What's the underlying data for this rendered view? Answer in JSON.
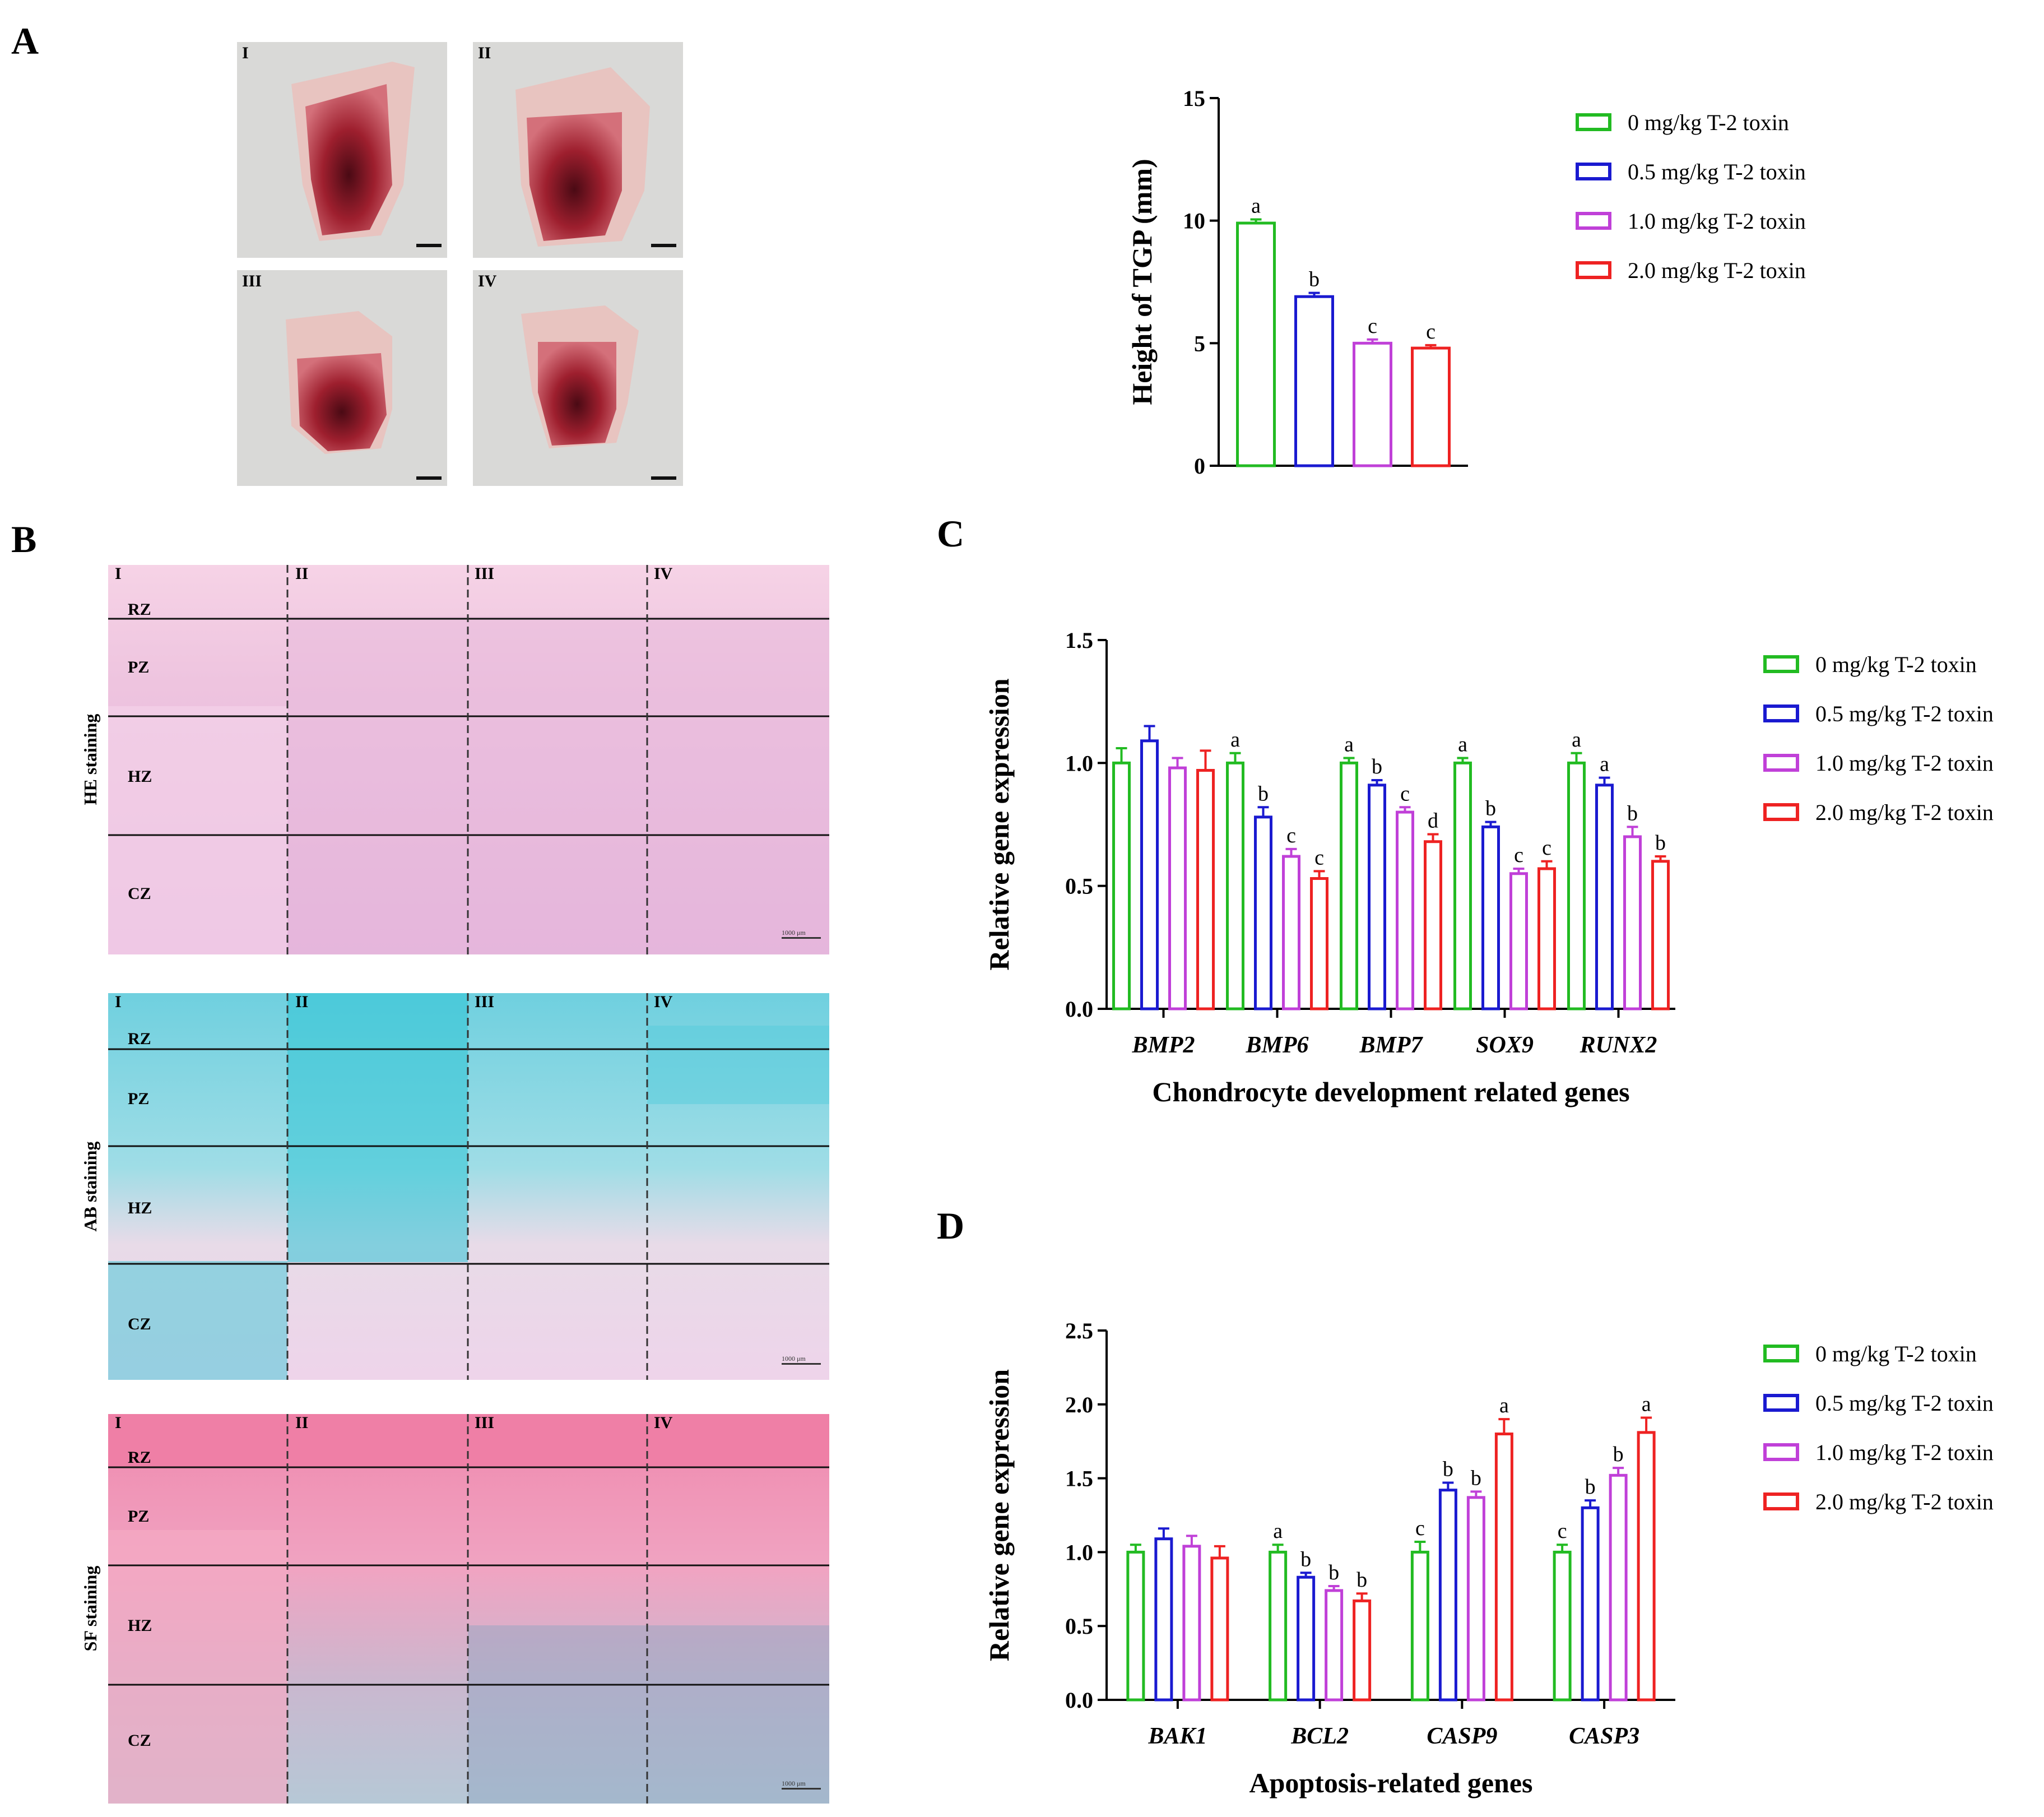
{
  "panels": {
    "A": "A",
    "B": "B",
    "C": "C",
    "D": "D"
  },
  "colors": {
    "g0": "#22bb22",
    "g05": "#1a1ad0",
    "g10": "#c040d8",
    "g20": "#ee2222"
  },
  "legend": [
    "0 mg/kg T-2 toxin",
    "0.5 mg/kg T-2 toxin",
    "1.0 mg/kg T-2 toxin",
    "2.0 mg/kg T-2 toxin"
  ],
  "photos": {
    "labels": [
      "I",
      "II",
      "III",
      "IV"
    ]
  },
  "histology": {
    "columns": [
      "I",
      "II",
      "III",
      "IV"
    ],
    "zones": [
      "RZ",
      "PZ",
      "HZ",
      "CZ"
    ],
    "stains": [
      "HE staining",
      "AB staining",
      "SF staining"
    ],
    "scale_text": "1000 μm"
  },
  "chart_data": [
    {
      "id": "A",
      "type": "bar",
      "title": "",
      "ylabel": "Height of TGP (mm)",
      "xlabel": "",
      "ylim": [
        0,
        15
      ],
      "yticks": [
        0,
        5,
        10,
        15
      ],
      "categories": [
        ""
      ],
      "series": [
        {
          "name": "0 mg/kg T-2 toxin",
          "values": [
            9.9
          ],
          "errors": [
            0.15
          ],
          "sig": [
            "a"
          ]
        },
        {
          "name": "0.5 mg/kg T-2 toxin",
          "values": [
            6.9
          ],
          "errors": [
            0.15
          ],
          "sig": [
            "b"
          ]
        },
        {
          "name": "1.0 mg/kg T-2 toxin",
          "values": [
            5.0
          ],
          "errors": [
            0.15
          ],
          "sig": [
            "c"
          ]
        },
        {
          "name": "2.0 mg/kg T-2 toxin",
          "values": [
            4.8
          ],
          "errors": [
            0.12
          ],
          "sig": [
            "c"
          ]
        }
      ]
    },
    {
      "id": "C",
      "type": "bar",
      "title": "",
      "ylabel": "Relative gene expression",
      "xlabel": "Chondrocyte development related genes",
      "ylim": [
        0,
        1.5
      ],
      "yticks": [
        "0.0",
        "0.5",
        "1.0",
        "1.5"
      ],
      "categories": [
        "BMP2",
        "BMP6",
        "BMP7",
        "SOX9",
        "RUNX2"
      ],
      "series": [
        {
          "name": "0 mg/kg T-2 toxin",
          "values": [
            1.0,
            1.0,
            1.0,
            1.0,
            1.0
          ],
          "errors": [
            0.06,
            0.04,
            0.02,
            0.02,
            0.04
          ],
          "sig": [
            "",
            "a",
            "a",
            "a",
            "a"
          ]
        },
        {
          "name": "0.5 mg/kg T-2 toxin",
          "values": [
            1.09,
            0.78,
            0.91,
            0.74,
            0.91
          ],
          "errors": [
            0.06,
            0.04,
            0.02,
            0.02,
            0.03
          ],
          "sig": [
            "",
            "b",
            "b",
            "b",
            "a"
          ]
        },
        {
          "name": "1.0 mg/kg T-2 toxin",
          "values": [
            0.98,
            0.62,
            0.8,
            0.55,
            0.7
          ],
          "errors": [
            0.04,
            0.03,
            0.02,
            0.02,
            0.04
          ],
          "sig": [
            "",
            "c",
            "c",
            "c",
            "b"
          ]
        },
        {
          "name": "2.0 mg/kg T-2 toxin",
          "values": [
            0.97,
            0.53,
            0.68,
            0.57,
            0.6
          ],
          "errors": [
            0.08,
            0.03,
            0.03,
            0.03,
            0.02
          ],
          "sig": [
            "",
            "c",
            "d",
            "c",
            "b"
          ]
        }
      ]
    },
    {
      "id": "D",
      "type": "bar",
      "title": "",
      "ylabel": "Relative gene expression",
      "xlabel": "Apoptosis-related genes",
      "ylim": [
        0,
        2.5
      ],
      "yticks": [
        "0.0",
        "0.5",
        "1.0",
        "1.5",
        "2.0",
        "2.5"
      ],
      "categories": [
        "BAK1",
        "BCL2",
        "CASP9",
        "CASP3"
      ],
      "series": [
        {
          "name": "0 mg/kg T-2 toxin",
          "values": [
            1.0,
            1.0,
            1.0,
            1.0
          ],
          "errors": [
            0.05,
            0.05,
            0.07,
            0.05
          ],
          "sig": [
            "",
            "a",
            "c",
            "c"
          ]
        },
        {
          "name": "0.5 mg/kg T-2 toxin",
          "values": [
            1.09,
            0.83,
            1.42,
            1.3
          ],
          "errors": [
            0.07,
            0.03,
            0.05,
            0.05
          ],
          "sig": [
            "",
            "b",
            "b",
            "b"
          ]
        },
        {
          "name": "1.0 mg/kg T-2 toxin",
          "values": [
            1.04,
            0.74,
            1.37,
            1.52
          ],
          "errors": [
            0.07,
            0.03,
            0.04,
            0.05
          ],
          "sig": [
            "",
            "b",
            "b",
            "b"
          ]
        },
        {
          "name": "2.0 mg/kg T-2 toxin",
          "values": [
            0.96,
            0.67,
            1.8,
            1.81
          ],
          "errors": [
            0.08,
            0.05,
            0.1,
            0.1
          ],
          "sig": [
            "",
            "b",
            "a",
            "a"
          ]
        }
      ]
    }
  ]
}
